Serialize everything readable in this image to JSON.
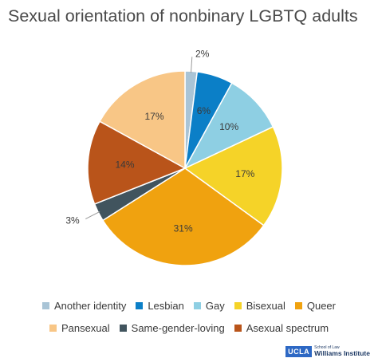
{
  "chart_data": {
    "type": "pie",
    "title": "Sexual orientation of nonbinary LGBTQ adults",
    "legend_position": "bottom",
    "slices": [
      {
        "name": "Another identity",
        "value": 2,
        "label": "2%",
        "color": "#a9c4d6"
      },
      {
        "name": "Lesbian",
        "value": 6,
        "label": "6%",
        "color": "#0b7fc7"
      },
      {
        "name": "Gay",
        "value": 10,
        "label": "10%",
        "color": "#8ecfe3"
      },
      {
        "name": "Bisexual",
        "value": 17,
        "label": "17%",
        "color": "#f5d328"
      },
      {
        "name": "Queer",
        "value": 31,
        "label": "31%",
        "color": "#f0a20f"
      },
      {
        "name": "Same-gender-loving",
        "value": 3,
        "label": "3%",
        "color": "#41545e"
      },
      {
        "name": "Asexual spectrum",
        "value": 14,
        "label": "14%",
        "color": "#b9541a"
      },
      {
        "name": "Pansexual",
        "value": 17,
        "label": "17%",
        "color": "#f8c686"
      }
    ],
    "legend_row_1": [
      "Another identity",
      "Lesbian",
      "Gay",
      "Bisexual",
      "Queer"
    ],
    "legend_row_2": [
      "Pansexual",
      "Same-gender-loving",
      "Asexual spectrum"
    ]
  },
  "logo": {
    "ucla": "UCLA",
    "school": "School of Law",
    "institute": "Williams Institute"
  }
}
